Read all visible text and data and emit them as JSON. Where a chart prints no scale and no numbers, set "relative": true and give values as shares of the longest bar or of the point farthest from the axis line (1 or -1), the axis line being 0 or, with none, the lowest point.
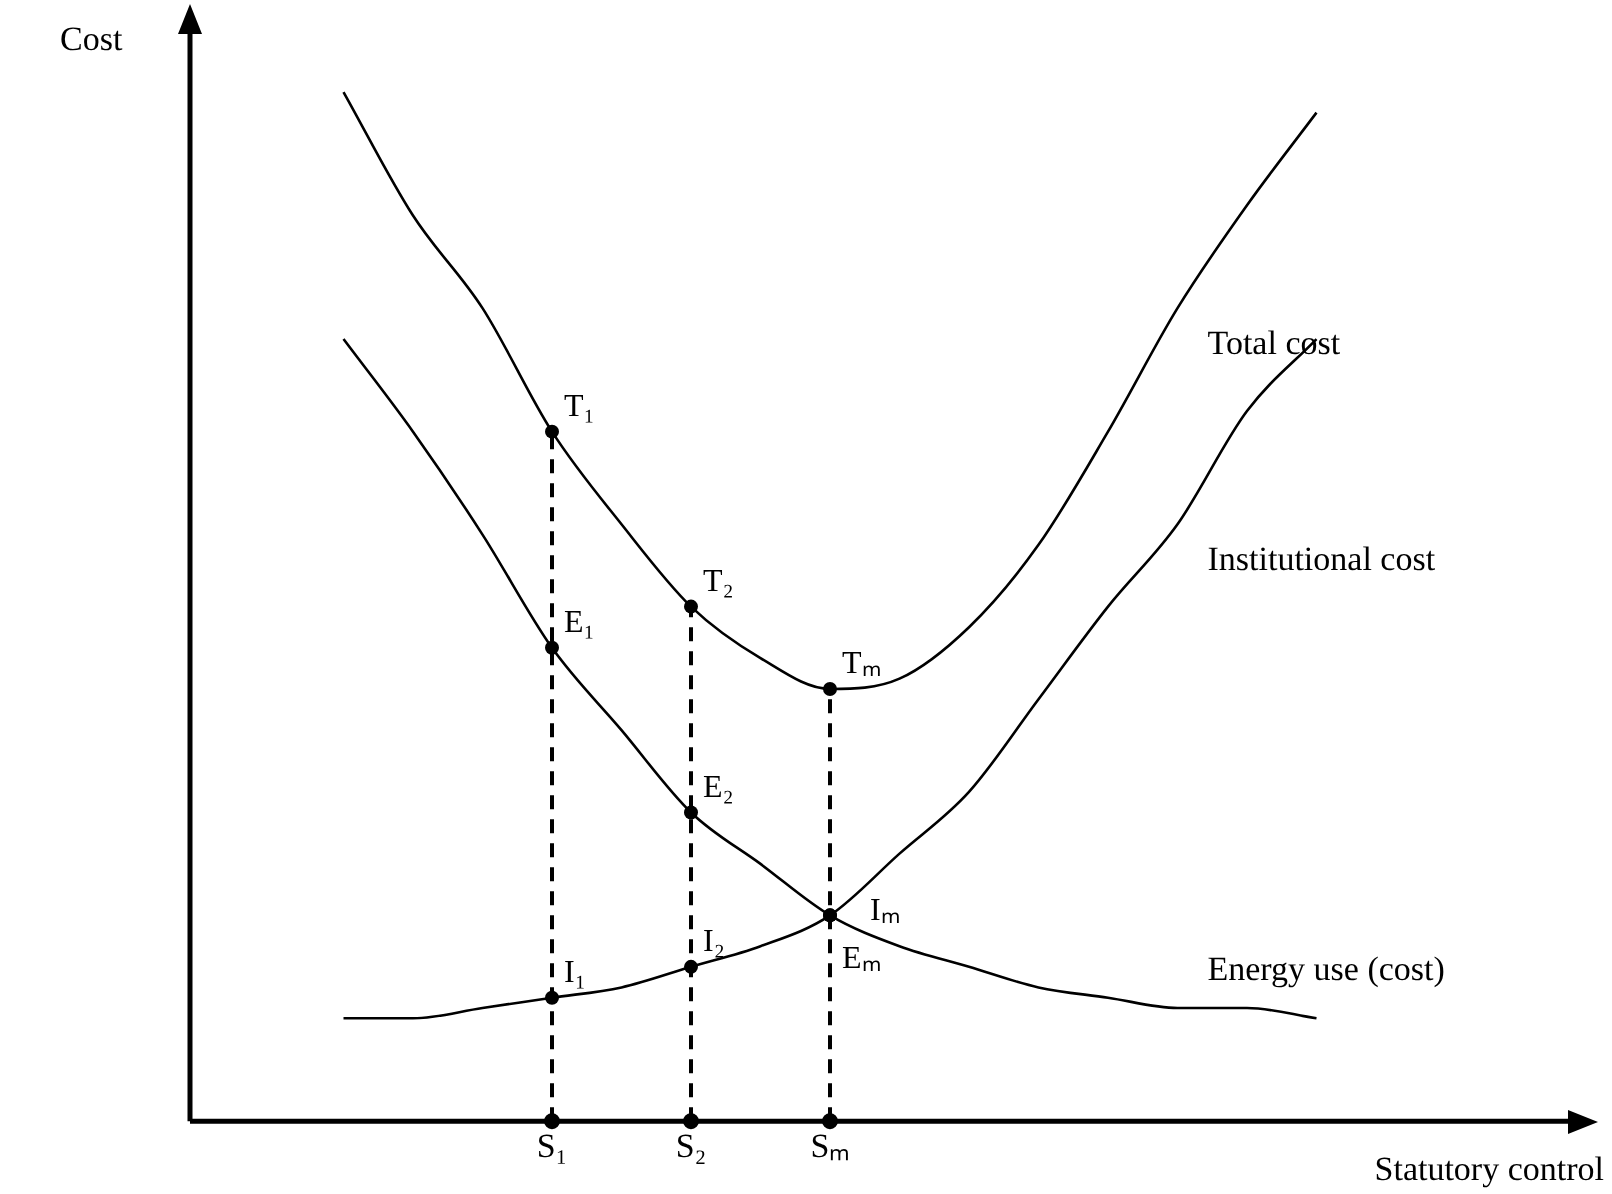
{
  "chart_data": {
    "type": "line",
    "relative": true,
    "xlabel": "Statutory control",
    "ylabel": "Cost",
    "categories": [
      null,
      null,
      null,
      null,
      "S₁",
      null,
      "S₂",
      null,
      "Sₘ",
      null,
      null,
      null,
      null,
      null,
      null,
      null,
      null
    ],
    "tick_labels": "x",
    "grid": false,
    "legend": false,
    "marker": "none",
    "line_style": "solid",
    "series": [
      {
        "name": "Total cost",
        "color": "#000000",
        "values": [
          null,
          1.0,
          0.88,
          0.79,
          0.67,
          0.58,
          0.5,
          0.45,
          0.42,
          0.43,
          0.48,
          0.56,
          0.67,
          0.79,
          0.89,
          0.98,
          null
        ]
      },
      {
        "name": "Institutional cost",
        "color": "#000000",
        "values": [
          null,
          0.1,
          0.1,
          0.11,
          0.12,
          0.13,
          0.15,
          0.17,
          0.2,
          0.26,
          0.32,
          0.41,
          0.5,
          0.58,
          0.69,
          0.76,
          null
        ]
      },
      {
        "name": "Energy use (cost)",
        "color": "#000000",
        "values": [
          null,
          0.76,
          0.67,
          0.57,
          0.46,
          0.38,
          0.3,
          0.25,
          0.2,
          0.17,
          0.15,
          0.13,
          0.12,
          0.11,
          0.11,
          0.1,
          null
        ]
      },
      {
        "type": "scatter",
        "color": "#000000",
        "marker": "circle",
        "x": [
          "S₁",
          "S₂",
          "Sₘ"
        ],
        "values": [
          0,
          0,
          0
        ]
      }
    ],
    "ref_lines": [
      {
        "axis": "x",
        "value": "S₁",
        "color": "#000000",
        "line_style": "dashed"
      },
      {
        "axis": "x",
        "value": "S₂",
        "color": "#000000",
        "line_style": "dashed"
      },
      {
        "axis": "x",
        "value": "Sₘ",
        "color": "#000000",
        "line_style": "dashed"
      }
    ],
    "annotations": [
      {
        "text": "T₁",
        "x": "S₁",
        "y": 0.67
      },
      {
        "text": "E₁",
        "x": "S₁",
        "y": 0.46
      },
      {
        "text": "I₁",
        "x": "S₁",
        "y": 0.12
      },
      {
        "text": "T₂",
        "x": "S₂",
        "y": 0.5
      },
      {
        "text": "E₂",
        "x": "S₂",
        "y": 0.3
      },
      {
        "text": "I₂",
        "x": "S₂",
        "y": 0.15
      },
      {
        "text": "Tₘ",
        "x": "Sₘ",
        "y": 0.42
      },
      {
        "text": "Iₘ",
        "x": "Sₘ",
        "y": 0.2
      },
      {
        "text": "Eₘ",
        "x": "Sₘ",
        "y": 0.2
      }
    ]
  }
}
